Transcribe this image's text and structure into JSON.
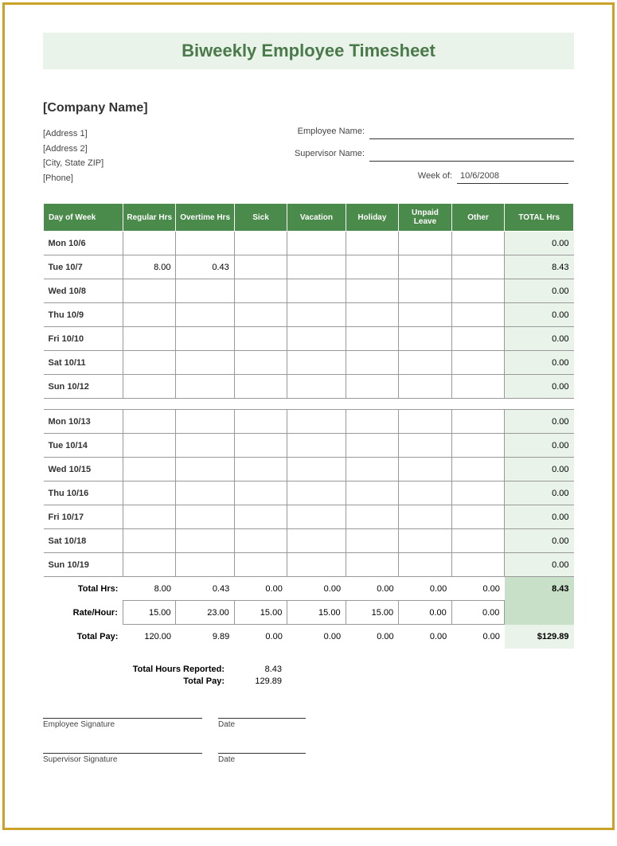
{
  "title": "Biweekly Employee Timesheet",
  "company_name": "[Company Name]",
  "company_lines": [
    "[Address 1]",
    "[Address 2]",
    "[City, State  ZIP]",
    "[Phone]"
  ],
  "fields": {
    "employee_name_label": "Employee Name:",
    "employee_name_value": "",
    "supervisor_name_label": "Supervisor Name:",
    "supervisor_name_value": "",
    "week_of_label": "Week of:",
    "week_of_value": "10/6/2008"
  },
  "columns": [
    "Day of Week",
    "Regular Hrs",
    "Overtime Hrs",
    "Sick",
    "Vacation",
    "Holiday",
    "Unpaid Leave",
    "Other",
    "TOTAL Hrs"
  ],
  "week1": [
    {
      "day": "Mon 10/6",
      "cells": [
        "",
        "",
        "",
        "",
        "",
        "",
        ""
      ],
      "total": "0.00"
    },
    {
      "day": "Tue 10/7",
      "cells": [
        "8.00",
        "0.43",
        "",
        "",
        "",
        "",
        ""
      ],
      "total": "8.43"
    },
    {
      "day": "Wed 10/8",
      "cells": [
        "",
        "",
        "",
        "",
        "",
        "",
        ""
      ],
      "total": "0.00"
    },
    {
      "day": "Thu 10/9",
      "cells": [
        "",
        "",
        "",
        "",
        "",
        "",
        ""
      ],
      "total": "0.00"
    },
    {
      "day": "Fri 10/10",
      "cells": [
        "",
        "",
        "",
        "",
        "",
        "",
        ""
      ],
      "total": "0.00"
    },
    {
      "day": "Sat 10/11",
      "cells": [
        "",
        "",
        "",
        "",
        "",
        "",
        ""
      ],
      "total": "0.00"
    },
    {
      "day": "Sun 10/12",
      "cells": [
        "",
        "",
        "",
        "",
        "",
        "",
        ""
      ],
      "total": "0.00"
    }
  ],
  "week2": [
    {
      "day": "Mon 10/13",
      "cells": [
        "",
        "",
        "",
        "",
        "",
        "",
        ""
      ],
      "total": "0.00"
    },
    {
      "day": "Tue 10/14",
      "cells": [
        "",
        "",
        "",
        "",
        "",
        "",
        ""
      ],
      "total": "0.00"
    },
    {
      "day": "Wed 10/15",
      "cells": [
        "",
        "",
        "",
        "",
        "",
        "",
        ""
      ],
      "total": "0.00"
    },
    {
      "day": "Thu 10/16",
      "cells": [
        "",
        "",
        "",
        "",
        "",
        "",
        ""
      ],
      "total": "0.00"
    },
    {
      "day": "Fri 10/17",
      "cells": [
        "",
        "",
        "",
        "",
        "",
        "",
        ""
      ],
      "total": "0.00"
    },
    {
      "day": "Sat 10/18",
      "cells": [
        "",
        "",
        "",
        "",
        "",
        "",
        ""
      ],
      "total": "0.00"
    },
    {
      "day": "Sun 10/19",
      "cells": [
        "",
        "",
        "",
        "",
        "",
        "",
        ""
      ],
      "total": "0.00"
    }
  ],
  "total_hrs_label": "Total Hrs:",
  "total_hrs": [
    "8.00",
    "0.43",
    "0.00",
    "0.00",
    "0.00",
    "0.00",
    "0.00"
  ],
  "total_hrs_grand": "8.43",
  "rate_label": "Rate/Hour:",
  "rate": [
    "15.00",
    "23.00",
    "15.00",
    "15.00",
    "15.00",
    "0.00",
    "0.00"
  ],
  "total_pay_label": "Total Pay:",
  "total_pay": [
    "120.00",
    "9.89",
    "0.00",
    "0.00",
    "0.00",
    "0.00",
    "0.00"
  ],
  "total_pay_grand": "$129.89",
  "summary": {
    "hours_label": "Total Hours Reported:",
    "hours_value": "8.43",
    "pay_label": "Total Pay:",
    "pay_value": "129.89"
  },
  "sig": {
    "employee": "Employee Signature",
    "supervisor": "Supervisor Signature",
    "date": "Date"
  },
  "colors": {
    "border": "#c9a227",
    "header_bg": "#4a8a4a",
    "title_bg": "#eaf3ea",
    "title_fg": "#4a7a4a",
    "total_col_bg": "#eaf3ea",
    "total_hrs_bg": "#c8e0c8"
  },
  "col_widths_pct": [
    14,
    10,
    10,
    10,
    10,
    10,
    10,
    10,
    12
  ]
}
